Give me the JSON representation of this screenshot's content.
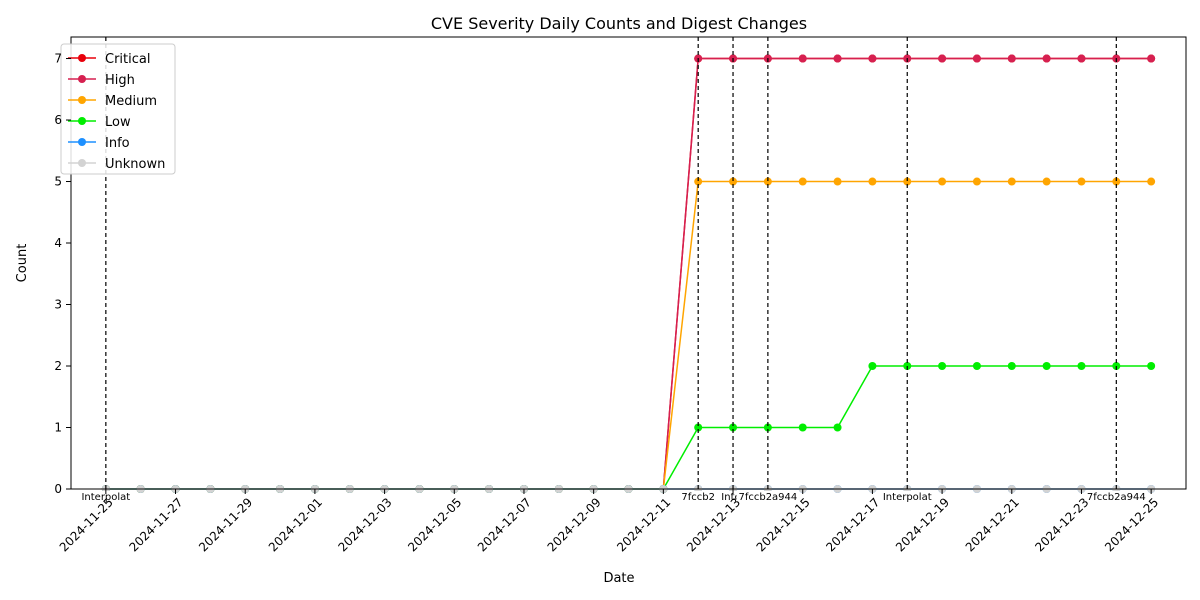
{
  "chart_data": {
    "type": "line",
    "title": "CVE Severity Daily Counts and Digest Changes",
    "xlabel": "Date",
    "ylabel": "Count",
    "xlim": [
      "2024-11-24",
      "2024-12-26"
    ],
    "ylim": [
      0,
      7.35
    ],
    "x": [
      "2024-11-25",
      "2024-11-26",
      "2024-11-27",
      "2024-11-28",
      "2024-11-29",
      "2024-11-30",
      "2024-12-01",
      "2024-12-02",
      "2024-12-03",
      "2024-12-04",
      "2024-12-05",
      "2024-12-06",
      "2024-12-07",
      "2024-12-08",
      "2024-12-09",
      "2024-12-10",
      "2024-12-11",
      "2024-12-12",
      "2024-12-13",
      "2024-12-14",
      "2024-12-15",
      "2024-12-16",
      "2024-12-17",
      "2024-12-18",
      "2024-12-19",
      "2024-12-20",
      "2024-12-21",
      "2024-12-22",
      "2024-12-23",
      "2024-12-24",
      "2024-12-25"
    ],
    "x_ticks": [
      "2024-11-25",
      "2024-11-27",
      "2024-11-29",
      "2024-12-01",
      "2024-12-03",
      "2024-12-05",
      "2024-12-07",
      "2024-12-09",
      "2024-12-11",
      "2024-12-13",
      "2024-12-15",
      "2024-12-17",
      "2024-12-19",
      "2024-12-21",
      "2024-12-23",
      "2024-12-25"
    ],
    "y_ticks": [
      0,
      1,
      2,
      3,
      4,
      5,
      6,
      7
    ],
    "grid": false,
    "legend_position": "top-left",
    "series": [
      {
        "name": "Critical",
        "color": "#e8000b",
        "values": [
          0,
          0,
          0,
          0,
          0,
          0,
          0,
          0,
          0,
          0,
          0,
          0,
          0,
          0,
          0,
          0,
          0,
          7,
          7,
          7,
          7,
          7,
          7,
          7,
          7,
          7,
          7,
          7,
          7,
          7,
          7
        ]
      },
      {
        "name": "High",
        "color": "#d62050",
        "values": [
          0,
          0,
          0,
          0,
          0,
          0,
          0,
          0,
          0,
          0,
          0,
          0,
          0,
          0,
          0,
          0,
          0,
          7,
          7,
          7,
          7,
          7,
          7,
          7,
          7,
          7,
          7,
          7,
          7,
          7,
          7
        ]
      },
      {
        "name": "Medium",
        "color": "#ffa500",
        "values": [
          0,
          0,
          0,
          0,
          0,
          0,
          0,
          0,
          0,
          0,
          0,
          0,
          0,
          0,
          0,
          0,
          0,
          5,
          5,
          5,
          5,
          5,
          5,
          5,
          5,
          5,
          5,
          5,
          5,
          5,
          5
        ]
      },
      {
        "name": "Low",
        "color": "#00ee00",
        "values": [
          0,
          0,
          0,
          0,
          0,
          0,
          0,
          0,
          0,
          0,
          0,
          0,
          0,
          0,
          0,
          0,
          0,
          1,
          1,
          1,
          1,
          1,
          2,
          2,
          2,
          2,
          2,
          2,
          2,
          2,
          2
        ]
      },
      {
        "name": "Info",
        "color": "#1e90ff",
        "values": [
          0,
          0,
          0,
          0,
          0,
          0,
          0,
          0,
          0,
          0,
          0,
          0,
          0,
          0,
          0,
          0,
          0,
          0,
          0,
          0,
          0,
          0,
          0,
          0,
          0,
          0,
          0,
          0,
          0,
          0,
          0
        ]
      },
      {
        "name": "Unknown",
        "color": "#d3d3d3",
        "values": [
          0,
          0,
          0,
          0,
          0,
          0,
          0,
          0,
          0,
          0,
          0,
          0,
          0,
          0,
          0,
          0,
          0,
          0,
          0,
          0,
          0,
          0,
          0,
          0,
          0,
          0,
          0,
          0,
          0,
          0,
          0
        ]
      }
    ],
    "digest_changes": [
      {
        "date": "2024-11-25",
        "label": "Interpolat"
      },
      {
        "date": "2024-12-12",
        "label": "7fccb2"
      },
      {
        "date": "2024-12-13",
        "label": "Inter"
      },
      {
        "date": "2024-12-14",
        "label": "7fccb2a944"
      },
      {
        "date": "2024-12-18",
        "label": "Interpolat"
      },
      {
        "date": "2024-12-24",
        "label": "7fccb2a944"
      }
    ]
  }
}
